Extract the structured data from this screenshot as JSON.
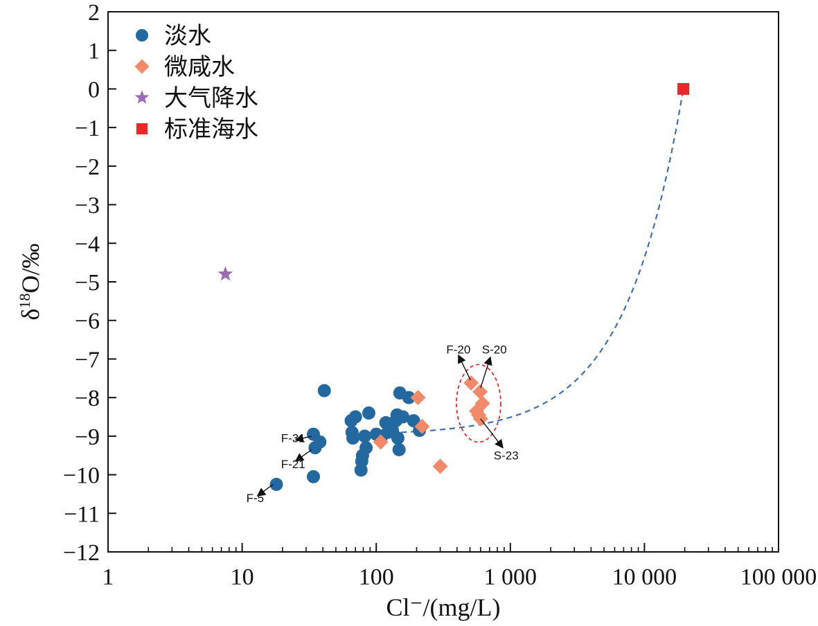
{
  "chart_data": {
    "type": "scatter",
    "xlabel": "Cl⁻/(mg/L)",
    "ylabel_main": "δ",
    "ylabel_sup": "18",
    "ylabel_rest": "O/‰",
    "x_scale": "log",
    "xlim": [
      1,
      100000
    ],
    "ylim": [
      -12,
      2
    ],
    "x_ticks": [
      {
        "value": 1,
        "label": "1"
      },
      {
        "value": 10,
        "label": "10"
      },
      {
        "value": 100,
        "label": "100"
      },
      {
        "value": 1000,
        "label": "1 000"
      },
      {
        "value": 10000,
        "label": "10 000"
      },
      {
        "value": 100000,
        "label": "100 000"
      }
    ],
    "y_ticks": [
      {
        "value": 2,
        "label": "2"
      },
      {
        "value": 1,
        "label": "1"
      },
      {
        "value": 0,
        "label": "0"
      },
      {
        "value": -1,
        "label": "−1"
      },
      {
        "value": -2,
        "label": "−2"
      },
      {
        "value": -3,
        "label": "−3"
      },
      {
        "value": -4,
        "label": "−4"
      },
      {
        "value": -5,
        "label": "−5"
      },
      {
        "value": -6,
        "label": "−6"
      },
      {
        "value": -7,
        "label": "−7"
      },
      {
        "value": -8,
        "label": "−8"
      },
      {
        "value": -9,
        "label": "−9"
      },
      {
        "value": -10,
        "label": "−10"
      },
      {
        "value": -11,
        "label": "−11"
      },
      {
        "value": -12,
        "label": "−12"
      }
    ],
    "grid": false,
    "legend_position": "top-left",
    "series": [
      {
        "name": "淡水",
        "marker": "circle",
        "color": "#2369a0",
        "points": [
          [
            18,
            -10.25
          ],
          [
            34,
            -10.05
          ],
          [
            35,
            -9.3
          ],
          [
            34,
            -8.95
          ],
          [
            38,
            -9.15
          ],
          [
            41,
            -7.82
          ],
          [
            65,
            -8.6
          ],
          [
            66,
            -8.9
          ],
          [
            67,
            -9.05
          ],
          [
            70,
            -8.5
          ],
          [
            77,
            -9.88
          ],
          [
            78,
            -9.65
          ],
          [
            79,
            -9.5
          ],
          [
            82,
            -9.0
          ],
          [
            84,
            -9.3
          ],
          [
            88,
            -8.4
          ],
          [
            100,
            -8.95
          ],
          [
            110,
            -9.0
          ],
          [
            118,
            -8.65
          ],
          [
            122,
            -8.9
          ],
          [
            128,
            -8.75
          ],
          [
            132,
            -8.85
          ],
          [
            140,
            -8.6
          ],
          [
            143,
            -8.45
          ],
          [
            145,
            -9.05
          ],
          [
            148,
            -9.35
          ],
          [
            150,
            -7.88
          ],
          [
            158,
            -8.5
          ],
          [
            175,
            -8.0
          ],
          [
            190,
            -8.6
          ],
          [
            210,
            -8.85
          ]
        ]
      },
      {
        "name": "微咸水",
        "marker": "diamond",
        "color": "#f28a6a",
        "points": [
          [
            108,
            -9.15
          ],
          [
            205,
            -8.0
          ],
          [
            220,
            -8.75
          ],
          [
            300,
            -9.78
          ],
          [
            510,
            -7.62
          ],
          [
            595,
            -7.85
          ],
          [
            620,
            -8.15
          ],
          [
            560,
            -8.35
          ],
          [
            580,
            -8.45
          ],
          [
            600,
            -8.55
          ]
        ]
      },
      {
        "name": "大气降水",
        "marker": "star",
        "color": "#9b6cb0",
        "points": [
          [
            7.5,
            -4.8
          ]
        ]
      },
      {
        "name": "标准海水",
        "marker": "square",
        "color": "#e8292a",
        "points": [
          [
            19500,
            0
          ]
        ]
      }
    ],
    "mixing_curve": {
      "style": "dashed",
      "color": "#3f6db5",
      "from": [
        110,
        -8.92
      ],
      "to": [
        19500,
        0
      ]
    },
    "ellipse": {
      "center": [
        580,
        -8.15
      ],
      "style": "dashed",
      "color": "#e8292a"
    },
    "annotations": [
      {
        "label": "F-31",
        "label_at": [
          24,
          -9.05
        ],
        "arrow_from": [
          33,
          -9.0
        ],
        "arrow_to": [
          25,
          -9.1
        ]
      },
      {
        "label": "F-21",
        "label_at": [
          24,
          -9.72
        ],
        "arrow_from": [
          33,
          -9.35
        ],
        "arrow_to": [
          25,
          -9.65
        ]
      },
      {
        "label": "F-5",
        "label_at": [
          12.5,
          -10.6
        ],
        "arrow_from": [
          17,
          -10.25
        ],
        "arrow_to": [
          13,
          -10.55
        ]
      },
      {
        "label": "F-20",
        "label_at": [
          410,
          -6.75
        ],
        "arrow_from": [
          505,
          -7.55
        ],
        "arrow_to": [
          410,
          -6.9
        ]
      },
      {
        "label": "S-20",
        "label_at": [
          760,
          -6.75
        ],
        "arrow_from": [
          600,
          -7.75
        ],
        "arrow_to": [
          710,
          -6.95
        ]
      },
      {
        "label": "S-23",
        "label_at": [
          930,
          -9.5
        ],
        "arrow_from": [
          600,
          -8.55
        ],
        "arrow_to": [
          880,
          -9.3
        ]
      }
    ]
  }
}
